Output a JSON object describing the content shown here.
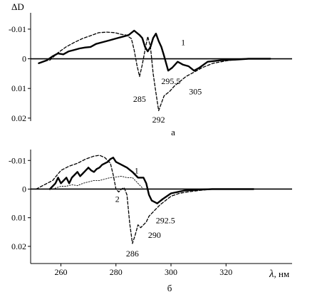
{
  "chart_data": [
    {
      "type": "line",
      "panel_label": "а",
      "ylabel": "ΔD",
      "y_inverted": true,
      "ylim": [
        0.021,
        -0.0155
      ],
      "xlim": [
        245,
        341
      ],
      "x_ticks": [],
      "y_ticks": [
        {
          "value": -0.01,
          "label": "-0.01"
        },
        {
          "value": 0,
          "label": "0"
        },
        {
          "value": 0.01,
          "label": "0.01"
        },
        {
          "value": 0.02,
          "label": "0.02"
        }
      ],
      "series": [
        {
          "name": "1",
          "style": "solid-thick",
          "x": [
            248,
            251,
            253,
            255,
            257,
            259,
            261,
            263,
            265,
            267,
            269,
            271,
            273,
            275,
            277,
            279,
            281,
            283,
            285,
            286,
            287,
            288,
            289,
            290,
            291,
            292,
            293,
            294,
            295.5,
            297,
            299,
            301,
            303,
            305,
            307,
            310,
            315,
            320,
            325,
            330,
            333
          ],
          "y": [
            0.0015,
            0.0005,
            -0.0008,
            -0.0018,
            -0.0015,
            -0.0025,
            -0.003,
            -0.0035,
            -0.0038,
            -0.004,
            -0.005,
            -0.0055,
            -0.006,
            -0.0065,
            -0.007,
            -0.0075,
            -0.008,
            -0.0095,
            -0.008,
            -0.007,
            -0.004,
            -0.0025,
            -0.004,
            -0.007,
            -0.0085,
            -0.006,
            -0.004,
            -0.001,
            0.004,
            0.003,
            0.001,
            0.002,
            0.0025,
            0.004,
            0.003,
            0.001,
            0.0005,
            0.0003,
            0.0,
            0.0,
            0.0
          ]
        },
        {
          "name": "",
          "style": "dashed",
          "x": [
            252,
            255,
            258,
            261,
            264,
            267,
            270,
            273,
            276,
            278,
            280,
            282,
            283,
            284,
            285,
            286,
            287,
            288,
            289,
            290,
            291,
            292,
            293,
            294,
            296,
            298,
            300,
            302,
            305,
            308,
            312,
            318,
            325,
            330
          ],
          "y": [
            0.0005,
            -0.002,
            -0.004,
            -0.0055,
            -0.0068,
            -0.0078,
            -0.0088,
            -0.009,
            -0.0088,
            -0.0083,
            -0.008,
            -0.0068,
            -0.003,
            0.002,
            0.006,
            0.002,
            -0.003,
            -0.0075,
            -0.004,
            0.005,
            0.0115,
            0.0175,
            0.015,
            0.0125,
            0.011,
            0.009,
            0.0075,
            0.006,
            0.0045,
            0.003,
            0.0015,
            0.0005,
            0.0,
            0.0
          ]
        }
      ],
      "annotations": [
        {
          "text": "1",
          "x": 301,
          "y": -0.0055
        },
        {
          "text": "285",
          "x": 285,
          "y": 0.0135
        },
        {
          "text": "292",
          "x": 292,
          "y": 0.0205
        },
        {
          "text": "295.5",
          "x": 296.5,
          "y": 0.0075
        },
        {
          "text": "305",
          "x": 305.5,
          "y": 0.011
        }
      ]
    },
    {
      "type": "line",
      "panel_label": "б",
      "xlabel": "λ",
      "xlabel_unit": ", нм",
      "y_inverted": true,
      "ylim": [
        0.026,
        -0.0138
      ],
      "xlim": [
        249,
        344
      ],
      "x_ticks": [
        {
          "value": 260,
          "label": "260"
        },
        {
          "value": 280,
          "label": "280"
        },
        {
          "value": 300,
          "label": "300"
        },
        {
          "value": 320,
          "label": "320"
        }
      ],
      "y_ticks": [
        {
          "value": -0.01,
          "label": "-0.01"
        },
        {
          "value": 0,
          "label": "0"
        },
        {
          "value": 0.01,
          "label": "0.01"
        },
        {
          "value": 0.02,
          "label": "0.02"
        }
      ],
      "series": [
        {
          "name": "1",
          "style": "solid-thick",
          "x": [
            256,
            258,
            259,
            260,
            261,
            262,
            263,
            264,
            265,
            266,
            267,
            268,
            269,
            270,
            271,
            272,
            273,
            274,
            275,
            276,
            277,
            278,
            279,
            280,
            282,
            284,
            286,
            288,
            290,
            291,
            292,
            293,
            295,
            297,
            300,
            305,
            310,
            315,
            320,
            325,
            330
          ],
          "y": [
            0.0,
            -0.002,
            -0.004,
            -0.002,
            -0.003,
            -0.004,
            -0.002,
            -0.004,
            -0.005,
            -0.006,
            -0.0045,
            -0.0055,
            -0.0065,
            -0.0075,
            -0.0065,
            -0.006,
            -0.007,
            -0.0075,
            -0.0085,
            -0.009,
            -0.0095,
            -0.0105,
            -0.011,
            -0.0095,
            -0.0085,
            -0.0075,
            -0.006,
            -0.004,
            -0.004,
            -0.002,
            0.002,
            0.004,
            0.005,
            0.0035,
            0.0015,
            0.0005,
            0.0002,
            0.0,
            0.0,
            0.0,
            0.0
          ]
        },
        {
          "name": "2",
          "style": "dashed",
          "x": [
            251,
            254,
            257,
            260,
            263,
            266,
            269,
            272,
            274,
            276,
            278,
            279,
            280,
            281,
            282,
            283,
            284,
            285,
            286,
            287,
            288,
            289,
            290,
            291,
            292,
            294,
            296,
            298,
            300,
            303,
            306,
            310,
            315,
            320,
            325,
            330
          ],
          "y": [
            0.0,
            -0.0015,
            -0.003,
            -0.0065,
            -0.008,
            -0.009,
            -0.0105,
            -0.0115,
            -0.0118,
            -0.011,
            -0.009,
            -0.005,
            0.0,
            0.001,
            0.0,
            -0.0005,
            0.002,
            0.012,
            0.019,
            0.016,
            0.0125,
            0.0135,
            0.0125,
            0.0115,
            0.0095,
            0.0075,
            0.0055,
            0.004,
            0.0025,
            0.0015,
            0.001,
            0.0005,
            0.0,
            0.0,
            0.0,
            0.0
          ]
        },
        {
          "name": "",
          "style": "dotted-thin",
          "x": [
            257,
            260,
            262,
            264,
            266,
            268,
            270,
            272,
            274,
            276,
            278,
            280,
            282,
            284,
            286,
            288,
            290
          ],
          "y": [
            0.0,
            -0.001,
            -0.001,
            -0.0015,
            -0.0012,
            -0.002,
            -0.0025,
            -0.003,
            -0.003,
            -0.0035,
            -0.004,
            -0.0042,
            -0.0045,
            -0.004,
            -0.004,
            -0.002,
            0.0
          ]
        }
      ],
      "annotations": [
        {
          "text": "1",
          "x": 287.5,
          "y": -0.0065
        },
        {
          "text": "2",
          "x": 280.5,
          "y": 0.0035
        },
        {
          "text": "286",
          "x": 286,
          "y": 0.0225
        },
        {
          "text": "292.5",
          "x": 298,
          "y": 0.011
        },
        {
          "text": "290",
          "x": 294,
          "y": 0.016
        }
      ]
    }
  ]
}
